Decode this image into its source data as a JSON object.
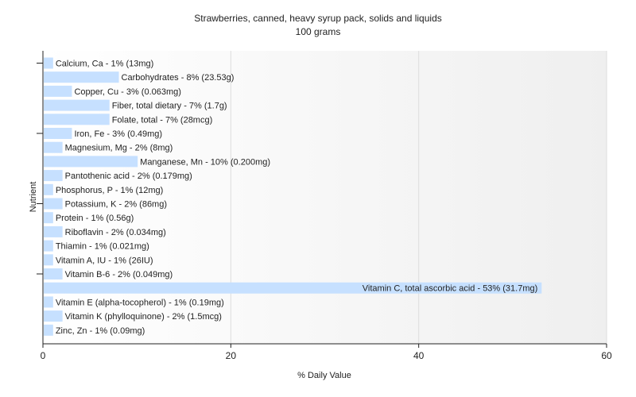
{
  "chart_data": {
    "type": "bar",
    "orientation": "horizontal",
    "title": "Strawberries, canned, heavy syrup pack, solids and liquids",
    "subtitle": "100 grams",
    "xlabel": "% Daily Value",
    "ylabel": "Nutrient",
    "xlim": [
      0,
      60
    ],
    "xticks": [
      "0",
      "20",
      "40",
      "60"
    ],
    "grid": true,
    "bar_color": "#c6e0ff",
    "categories": [
      "Calcium, Ca",
      "Carbohydrates",
      "Copper, Cu",
      "Fiber, total dietary",
      "Folate, total",
      "Iron, Fe",
      "Magnesium, Mg",
      "Manganese, Mn",
      "Pantothenic acid",
      "Phosphorus, P",
      "Potassium, K",
      "Protein",
      "Riboflavin",
      "Thiamin",
      "Vitamin A, IU",
      "Vitamin B-6",
      "Vitamin C, total ascorbic acid",
      "Vitamin E (alpha-tocopherol)",
      "Vitamin K (phylloquinone)",
      "Zinc, Zn"
    ],
    "values": [
      1,
      8,
      3,
      7,
      7,
      3,
      2,
      10,
      2,
      1,
      2,
      1,
      2,
      1,
      1,
      2,
      53,
      1,
      2,
      1
    ],
    "labels": [
      "Calcium, Ca - 1% (13mg)",
      "Carbohydrates - 8% (23.53g)",
      "Copper, Cu - 3% (0.063mg)",
      "Fiber, total dietary - 7% (1.7g)",
      "Folate, total - 7% (28mcg)",
      "Iron, Fe - 3% (0.49mg)",
      "Magnesium, Mg - 2% (8mg)",
      "Manganese, Mn - 10% (0.200mg)",
      "Pantothenic acid - 2% (0.179mg)",
      "Phosphorus, P - 1% (12mg)",
      "Potassium, K - 2% (86mg)",
      "Protein - 1% (0.56g)",
      "Riboflavin - 2% (0.034mg)",
      "Thiamin - 1% (0.021mg)",
      "Vitamin A, IU - 1% (26IU)",
      "Vitamin B-6 - 2% (0.049mg)",
      "Vitamin C, total ascorbic acid - 53% (31.7mg)",
      "Vitamin E (alpha-tocopherol) - 1% (0.19mg)",
      "Vitamin K (phylloquinone) - 2% (1.5mcg)",
      "Zinc, Zn - 1% (0.09mg)"
    ]
  }
}
